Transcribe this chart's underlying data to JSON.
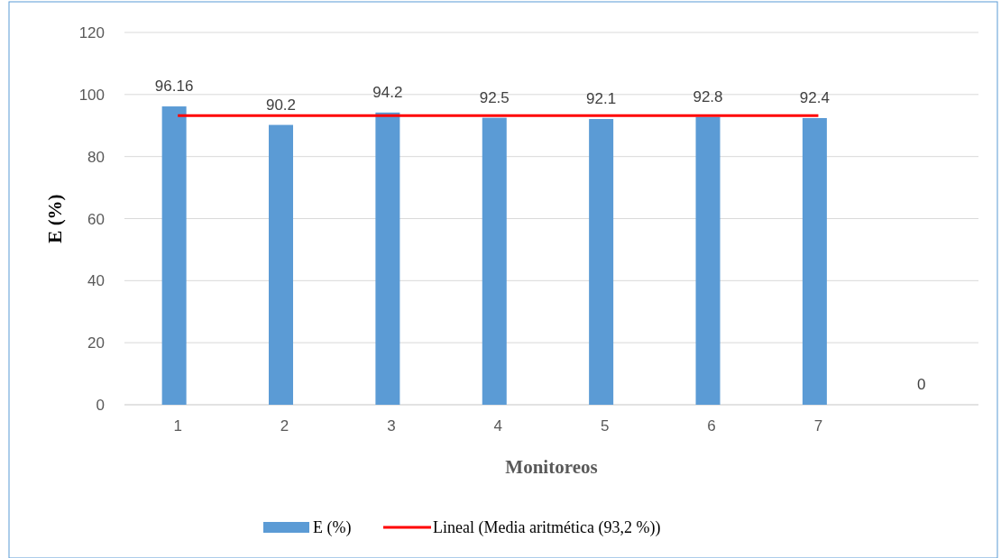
{
  "chart_data": {
    "type": "bar",
    "xlabel": "Monitoreos",
    "ylabel": "E (%)",
    "categories": [
      "1",
      "2",
      "3",
      "4",
      "5",
      "6",
      "7",
      null
    ],
    "series": [
      {
        "name": "E (%)",
        "color": "#5b9bd5",
        "values": [
          96.16,
          90.2,
          94.2,
          92.5,
          92.1,
          92.8,
          92.4,
          0
        ],
        "value_labels": [
          "96.16",
          "90.2",
          "94.2",
          "92.5",
          "92.1",
          "92.8",
          "92.4",
          "0"
        ]
      },
      {
        "name": "Lineal (Media aritmética (93,2 %))",
        "type": "line",
        "color": "#ff0000",
        "values": [
          93.2,
          93.2,
          93.2,
          93.2,
          93.2,
          93.2,
          93.2,
          null
        ]
      }
    ],
    "ylim": [
      0,
      120
    ],
    "yticks": [
      0,
      20,
      40,
      60,
      80,
      100,
      120
    ],
    "grid": "y",
    "legend": "bottom",
    "marker": "none",
    "line_style": "solid"
  }
}
